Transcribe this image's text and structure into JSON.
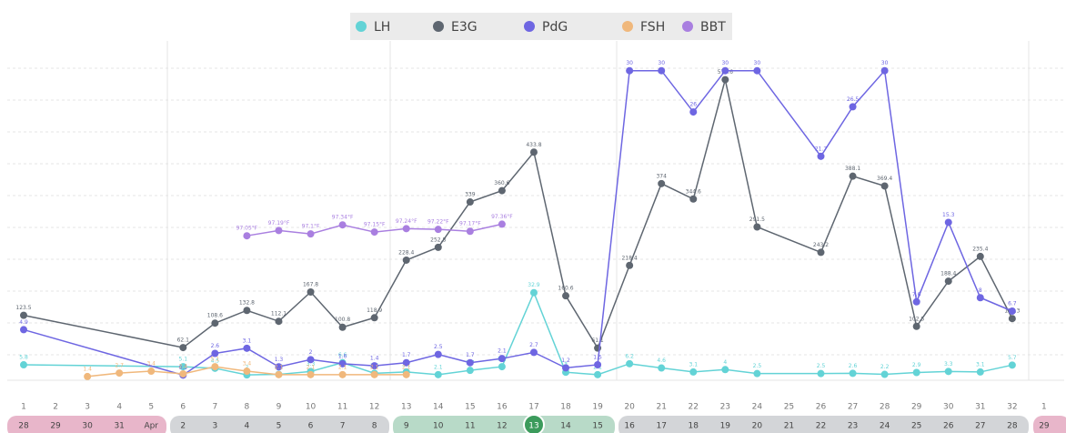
{
  "chart_data": {
    "type": "line",
    "categories": [
      "1",
      "2",
      "3",
      "4",
      "5",
      "6",
      "7",
      "8",
      "9",
      "10",
      "11",
      "12",
      "13",
      "14",
      "15",
      "16",
      "17",
      "18",
      "19",
      "20",
      "21",
      "22",
      "23",
      "24",
      "25",
      "26",
      "27",
      "28",
      "29",
      "30",
      "31",
      "32",
      "1"
    ],
    "dates": [
      "28",
      "29",
      "30",
      "31",
      "Apr",
      "2",
      "3",
      "4",
      "5",
      "6",
      "7",
      "8",
      "9",
      "10",
      "11",
      "12",
      "13",
      "14",
      "15",
      "16",
      "17",
      "18",
      "19",
      "20",
      "21",
      "22",
      "23",
      "24",
      "25",
      "26",
      "27",
      "28",
      "29"
    ],
    "series": [
      {
        "name": "LH",
        "color": "#63d3d6",
        "ylim": [
          0,
          124
        ],
        "x": [
          1,
          6,
          7,
          8,
          9,
          10,
          11,
          12,
          13,
          14,
          15,
          16,
          17,
          18,
          19,
          20,
          21,
          22,
          23,
          24,
          26,
          27,
          28,
          29,
          30,
          31,
          32
        ],
        "values": [
          5.8,
          5.1,
          4.5,
          2,
          2.2,
          3.3,
          6.6,
          2.6,
          3.1,
          2.1,
          3.7,
          5.1,
          32.9,
          3,
          2.1,
          6.2,
          4.6,
          3.1,
          4,
          2.5,
          2.5,
          2.6,
          2.2,
          2.9,
          3.3,
          3.1,
          5.7
        ]
      },
      {
        "name": "E3G",
        "color": "#5e6670",
        "ylim": [
          0,
          628
        ],
        "x": [
          1,
          6,
          7,
          8,
          9,
          10,
          11,
          12,
          13,
          14,
          15,
          16,
          17,
          18,
          19,
          20,
          21,
          22,
          23,
          24,
          26,
          27,
          28,
          29,
          30,
          31,
          32
        ],
        "values": [
          123.5,
          62.1,
          108.6,
          132.8,
          112.1,
          167.8,
          100.8,
          118.9,
          228.4,
          252.8,
          339,
          360.6,
          433.8,
          160.6,
          61.1,
          218.4,
          374,
          344.6,
          571.6,
          291.5,
          243.2,
          388.1,
          369.4,
          102.5,
          188.4,
          235.4,
          117.3
        ]
      },
      {
        "name": "PdG",
        "color": "#6e66e2",
        "ylim": [
          0,
          32
        ],
        "x": [
          1,
          6,
          7,
          8,
          9,
          10,
          11,
          12,
          13,
          14,
          15,
          16,
          17,
          18,
          19,
          20,
          21,
          22,
          23,
          24,
          26,
          27,
          28,
          29,
          30,
          31,
          32
        ],
        "values": [
          4.9,
          0.5,
          2.6,
          3.1,
          1.3,
          2,
          1.6,
          1.4,
          1.7,
          2.5,
          1.7,
          2.1,
          2.7,
          1.2,
          1.5,
          30,
          30,
          26,
          30,
          30,
          21.7,
          26.5,
          30,
          7.6,
          15.3,
          8,
          6.7
        ]
      },
      {
        "name": "FSH",
        "color": "#f0b87c",
        "ylim": [
          0,
          124
        ],
        "x": [
          3,
          4,
          5,
          6,
          7,
          8,
          9,
          10,
          11,
          12,
          13
        ],
        "values": [
          1.4,
          2.7,
          3.4,
          2.4,
          5.1,
          3.4,
          2.1,
          2.1,
          2.1,
          2.1,
          2.1
        ]
      },
      {
        "name": "BBT",
        "color": "#a97fe0",
        "ylim": [
          93.2,
          102
        ],
        "x": [
          8,
          9,
          10,
          11,
          12,
          13,
          14,
          15,
          16
        ],
        "values": [
          97.05,
          97.19,
          97.1,
          97.34,
          97.15,
          97.24,
          97.22,
          97.17,
          97.36
        ],
        "value_labels": [
          "97.05°F",
          "97.19°F",
          "97.1°F",
          "97.34°F",
          "97.15°F",
          "97.24°F",
          "97.22°F",
          "97.17°F",
          "97.36°F"
        ]
      }
    ]
  }
}
